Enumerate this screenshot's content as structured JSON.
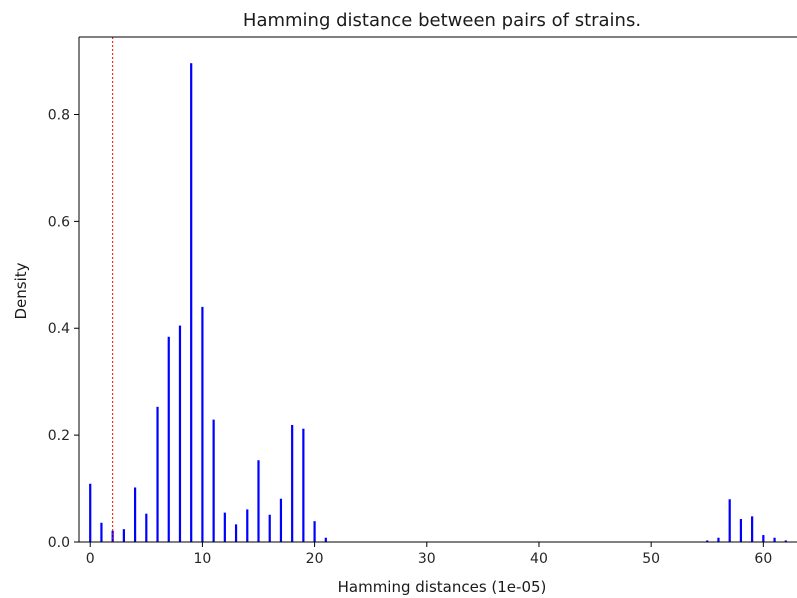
{
  "chart_data": {
    "type": "bar",
    "title": "Hamming distance between pairs of strains.",
    "xlabel": "Hamming distances (1e-05)",
    "ylabel": "Density",
    "xlim": [
      -1,
      63
    ],
    "ylim": [
      0,
      0.945
    ],
    "xticks": [
      0,
      10,
      20,
      30,
      40,
      50,
      60
    ],
    "xtick_labels": [
      "0",
      "10",
      "20",
      "30",
      "40",
      "50",
      "60"
    ],
    "yticks": [
      0.0,
      0.2,
      0.4,
      0.6,
      0.8
    ],
    "ytick_labels": [
      "0.0",
      "0.2",
      "0.4",
      "0.6",
      "0.8"
    ],
    "grid": false,
    "bar_color": "#0000ff",
    "reference_line": {
      "x": 2,
      "color": "#ff0000",
      "style": "dotted"
    },
    "x": [
      0,
      1,
      2,
      3,
      4,
      5,
      6,
      7,
      8,
      9,
      10,
      11,
      12,
      13,
      14,
      15,
      16,
      17,
      18,
      19,
      20,
      21,
      55,
      56,
      57,
      58,
      59,
      60,
      61,
      62
    ],
    "values": [
      0.109,
      0.036,
      0.021,
      0.024,
      0.102,
      0.053,
      0.253,
      0.384,
      0.405,
      0.896,
      0.44,
      0.229,
      0.055,
      0.033,
      0.061,
      0.153,
      0.051,
      0.081,
      0.219,
      0.212,
      0.039,
      0.008,
      0.003,
      0.008,
      0.08,
      0.043,
      0.048,
      0.013,
      0.008,
      0.003
    ]
  }
}
